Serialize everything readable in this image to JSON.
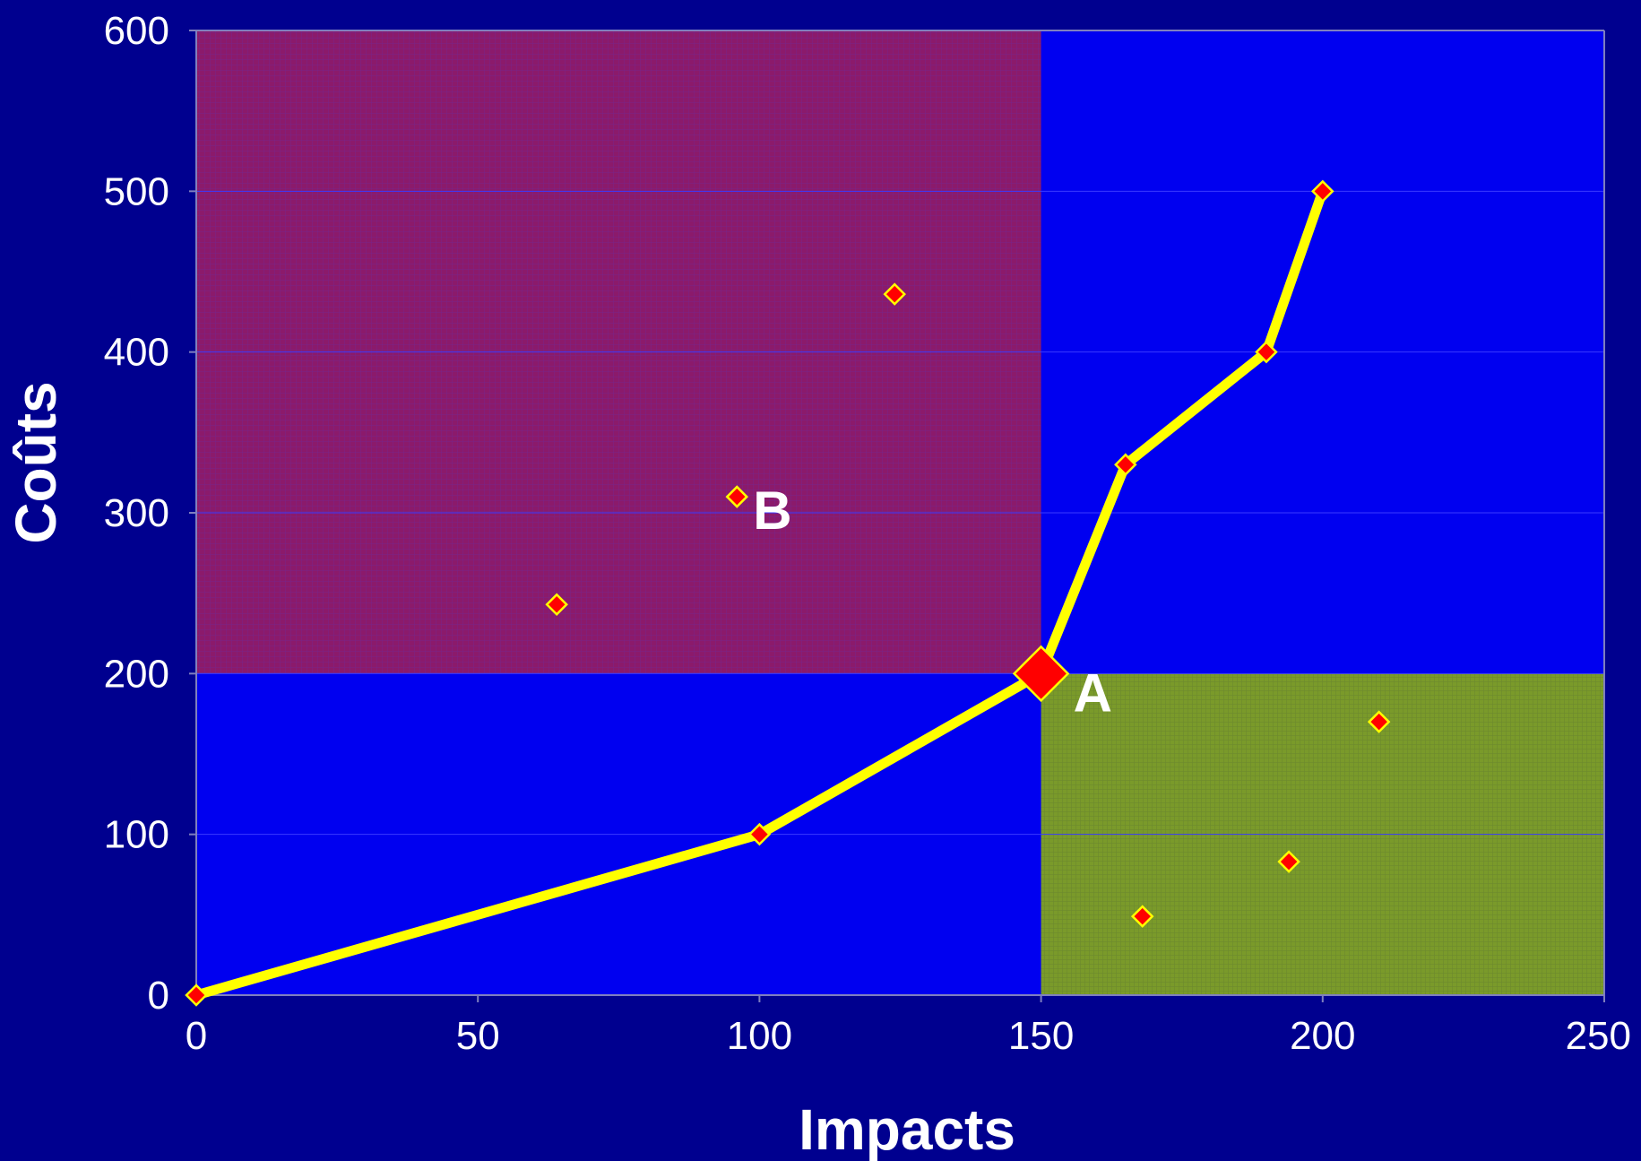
{
  "chart_data": {
    "type": "scatter",
    "xlabel": "Impacts",
    "ylabel": "Coûts",
    "xlim": [
      0,
      250
    ],
    "ylim": [
      0,
      600
    ],
    "x_ticks": [
      0,
      50,
      100,
      150,
      200,
      250
    ],
    "y_ticks": [
      0,
      100,
      200,
      300,
      400,
      500,
      600
    ],
    "grid": "horizontal lines",
    "regions": [
      {
        "label": "B",
        "x_range": [
          0,
          150
        ],
        "y_range": [
          200,
          600
        ],
        "color": "#8b1a6b"
      },
      {
        "label": "A",
        "x_range": [
          150,
          250
        ],
        "y_range": [
          0,
          200
        ],
        "color": "#7a9a2a"
      }
    ],
    "frontier": {
      "points": [
        {
          "x": 0,
          "y": 0
        },
        {
          "x": 100,
          "y": 100
        },
        {
          "x": 150,
          "y": 200
        },
        {
          "x": 165,
          "y": 330
        },
        {
          "x": 190,
          "y": 400
        },
        {
          "x": 200,
          "y": 500
        }
      ]
    },
    "scatter": {
      "points": [
        {
          "x": 64,
          "y": 243
        },
        {
          "x": 96,
          "y": 310
        },
        {
          "x": 124,
          "y": 436
        },
        {
          "x": 168,
          "y": 49
        },
        {
          "x": 194,
          "y": 83
        },
        {
          "x": 210,
          "y": 170
        }
      ]
    },
    "highlight": {
      "x": 150,
      "y": 200,
      "label": "A"
    },
    "annotations": [
      {
        "text": "A",
        "x": 150,
        "y": 200
      },
      {
        "text": "B",
        "x": 96,
        "y": 310
      }
    ],
    "colors": {
      "background": "#00008f",
      "plot_area": "#0000f0",
      "frontier_line": "#ffff00",
      "marker_fill": "#ff0000",
      "marker_edge": "#ffff00",
      "text": "#ffffff"
    }
  }
}
